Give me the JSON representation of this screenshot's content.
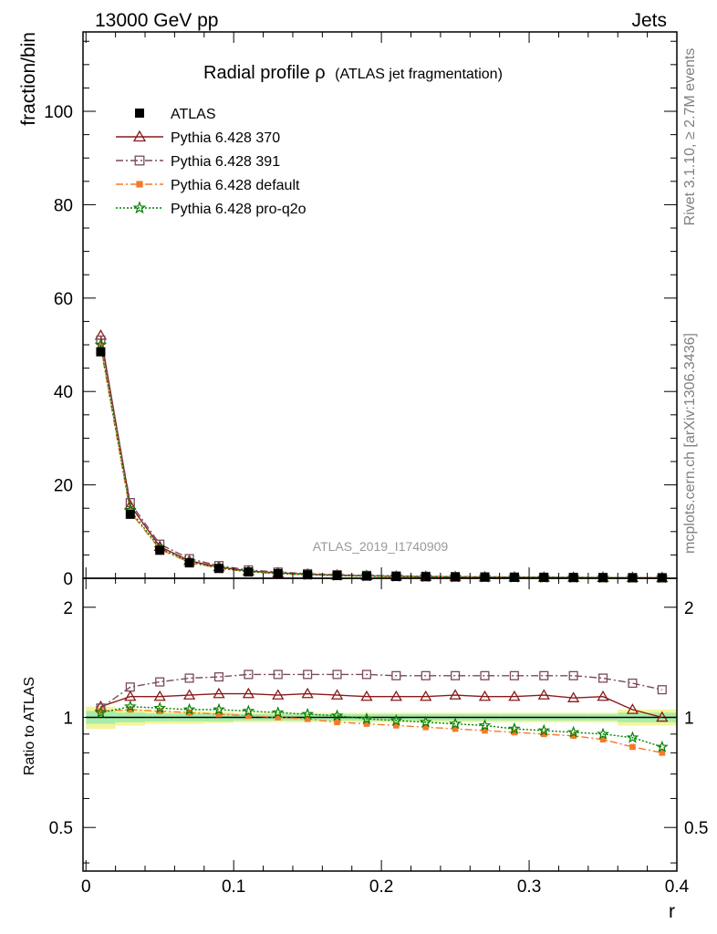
{
  "header": {
    "left": "13000 GeV pp",
    "right": "Jets"
  },
  "side_labels": {
    "rivet": "Rivet 3.1.10, ≥ 2.7M events",
    "mcplots": "mcplots.cern.ch [arXiv:1306.3436]"
  },
  "chart_data": {
    "type": "line",
    "title": "Radial profile ρ",
    "subtitle": "(ATLAS jet fragmentation)",
    "watermark": "ATLAS_2019_I1740909",
    "xlabel": "r",
    "ylabel": "fraction/bin",
    "ratio_ylabel": "Ratio to ATLAS",
    "xlim": [
      -0.002,
      0.4
    ],
    "ylim": [
      0,
      117
    ],
    "ratio_ylim": [
      0.38,
      2.4
    ],
    "ratio_log": true,
    "x_ticks": [
      "0",
      "0.1",
      "0.2",
      "0.3",
      "0.4"
    ],
    "x_tick_values": [
      0,
      0.1,
      0.2,
      0.3,
      0.4
    ],
    "y_ticks": [
      "0",
      "20",
      "40",
      "60",
      "80",
      "100"
    ],
    "y_tick_values": [
      0,
      20,
      40,
      60,
      80,
      100
    ],
    "ratio_ticks": [
      "0.5",
      "1",
      "2"
    ],
    "ratio_tick_values": [
      0.5,
      1,
      2
    ],
    "x": [
      0.01,
      0.03,
      0.05,
      0.07,
      0.09,
      0.11,
      0.13,
      0.15,
      0.17,
      0.19,
      0.21,
      0.23,
      0.25,
      0.27,
      0.29,
      0.31,
      0.33,
      0.35,
      0.37,
      0.39
    ],
    "data": {
      "name": "ATLAS",
      "color": "#000000",
      "values": [
        48.5,
        13.7,
        6.0,
        3.3,
        2.1,
        1.35,
        1.0,
        0.75,
        0.58,
        0.47,
        0.38,
        0.32,
        0.27,
        0.23,
        0.2,
        0.17,
        0.15,
        0.13,
        0.11,
        0.1
      ],
      "band_inner": [
        0.04,
        0.03,
        0.025,
        0.025,
        0.025,
        0.02,
        0.02,
        0.02,
        0.02,
        0.02,
        0.02,
        0.02,
        0.02,
        0.02,
        0.02,
        0.02,
        0.02,
        0.02,
        0.03,
        0.03
      ],
      "band_outer": [
        0.07,
        0.05,
        0.04,
        0.04,
        0.035,
        0.03,
        0.03,
        0.03,
        0.03,
        0.03,
        0.03,
        0.03,
        0.03,
        0.03,
        0.03,
        0.03,
        0.03,
        0.03,
        0.05,
        0.05
      ]
    },
    "series": [
      {
        "name": "Pythia 6.428 370",
        "color": "#8b1a1a",
        "marker": "triangle-open",
        "dash": "",
        "values": [
          52.0,
          15.6,
          6.8,
          3.76,
          2.42,
          1.55,
          1.15,
          0.86,
          0.66,
          0.53,
          0.43,
          0.36,
          0.31,
          0.26,
          0.22,
          0.19,
          0.17,
          0.15,
          0.12,
          0.1
        ],
        "ratio": [
          1.07,
          1.14,
          1.14,
          1.15,
          1.16,
          1.16,
          1.15,
          1.16,
          1.15,
          1.14,
          1.14,
          1.14,
          1.15,
          1.14,
          1.14,
          1.15,
          1.13,
          1.14,
          1.05,
          1.0
        ]
      },
      {
        "name": "Pythia 6.428 391",
        "color": "#7a4a5a",
        "marker": "square-open",
        "dash": "8,3,2,3",
        "values": [
          51.0,
          16.2,
          7.3,
          4.2,
          2.7,
          1.78,
          1.32,
          0.99,
          0.77,
          0.62,
          0.5,
          0.42,
          0.36,
          0.31,
          0.27,
          0.23,
          0.2,
          0.17,
          0.14,
          0.12
        ],
        "ratio": [
          1.06,
          1.21,
          1.25,
          1.28,
          1.29,
          1.31,
          1.31,
          1.31,
          1.31,
          1.31,
          1.3,
          1.3,
          1.3,
          1.3,
          1.3,
          1.3,
          1.3,
          1.28,
          1.24,
          1.19
        ]
      },
      {
        "name": "Pythia 6.428 default",
        "color": "#f5792a",
        "marker": "square-filled",
        "dash": "8,3,2,3",
        "values": [
          49.5,
          14.2,
          6.2,
          3.4,
          2.15,
          1.38,
          1.0,
          0.74,
          0.57,
          0.45,
          0.36,
          0.3,
          0.25,
          0.21,
          0.18,
          0.15,
          0.13,
          0.115,
          0.093,
          0.081
        ],
        "ratio": [
          1.04,
          1.05,
          1.04,
          1.03,
          1.02,
          1.01,
          1.0,
          0.99,
          0.97,
          0.96,
          0.95,
          0.94,
          0.93,
          0.92,
          0.91,
          0.9,
          0.89,
          0.87,
          0.83,
          0.8
        ]
      },
      {
        "name": "Pythia 6.428 pro-q2o",
        "color": "#008000",
        "marker": "star",
        "dash": "2,2",
        "values": [
          50.0,
          14.6,
          6.4,
          3.5,
          2.2,
          1.4,
          1.03,
          0.77,
          0.59,
          0.47,
          0.38,
          0.32,
          0.27,
          0.22,
          0.19,
          0.16,
          0.14,
          0.12,
          0.1,
          0.085
        ],
        "ratio": [
          1.03,
          1.07,
          1.06,
          1.05,
          1.05,
          1.04,
          1.03,
          1.02,
          1.01,
          0.99,
          0.98,
          0.97,
          0.96,
          0.95,
          0.93,
          0.92,
          0.91,
          0.9,
          0.88,
          0.83
        ]
      }
    ]
  }
}
